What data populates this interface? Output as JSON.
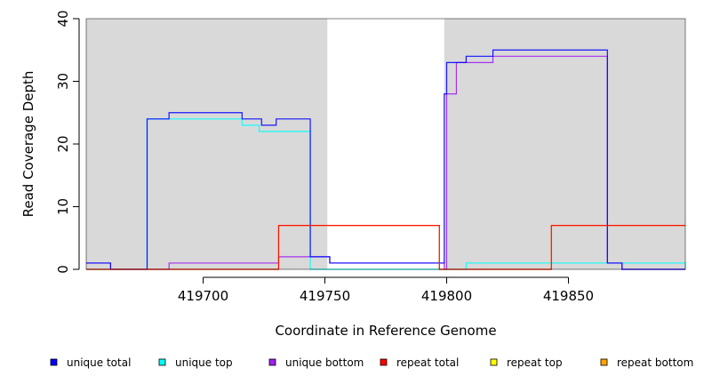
{
  "chart_data": {
    "type": "line",
    "title": "",
    "xlabel": "Coordinate in Reference Genome",
    "ylabel": "Read Coverage Depth",
    "xlim": [
      419652,
      419898
    ],
    "ylim": [
      0,
      40
    ],
    "x_ticks": [
      419700,
      419750,
      419800,
      419850
    ],
    "y_ticks": [
      0,
      10,
      20,
      30,
      40
    ],
    "grid": false,
    "step": true,
    "background": "#d9d9d9",
    "shaded_regions": [
      [
        419652,
        419751
      ],
      [
        419799,
        419898
      ]
    ],
    "legend_position": "bottom",
    "legend": [
      {
        "name": "unique total",
        "color": "#0000ff"
      },
      {
        "name": "unique top",
        "color": "#00ffff"
      },
      {
        "name": "unique bottom",
        "color": "#a020f0"
      },
      {
        "name": "repeat total",
        "color": "#ff0000"
      },
      {
        "name": "repeat top",
        "color": "#ffff00"
      },
      {
        "name": "repeat bottom",
        "color": "#ffa500"
      }
    ],
    "series": [
      {
        "name": "unique top",
        "color": "#00ffff",
        "x": [
          419652,
          419677,
          419686,
          419716,
          419723,
          419744,
          419752,
          419797,
          419799,
          419808,
          419819,
          419866,
          419898
        ],
        "y": [
          0,
          24,
          24,
          23,
          22,
          0,
          0,
          0,
          0,
          1,
          1,
          1,
          0
        ]
      },
      {
        "name": "unique bottom",
        "color": "#a020f0",
        "x": [
          419652,
          419662,
          419677,
          419686,
          419716,
          419723,
          419731,
          419744,
          419752,
          419797,
          419799,
          419800,
          419804,
          419819,
          419866,
          419872,
          419898
        ],
        "y": [
          1,
          0,
          0,
          1,
          1,
          1,
          2,
          2,
          1,
          1,
          0,
          28,
          33,
          34,
          1,
          0,
          0
        ]
      },
      {
        "name": "unique total",
        "color": "#0000ff",
        "x": [
          419652,
          419662,
          419677,
          419686,
          419716,
          419724,
          419730,
          419744,
          419752,
          419797,
          419799,
          419800,
          419804,
          419808,
          419819,
          419866,
          419872,
          419898
        ],
        "y": [
          1,
          0,
          24,
          25,
          24,
          23,
          24,
          2,
          1,
          1,
          28,
          33,
          33,
          34,
          35,
          1,
          0,
          0
        ]
      },
      {
        "name": "repeat bottom",
        "color": "#ffa500",
        "x": [
          419652,
          419731,
          419797,
          419843,
          419898
        ],
        "y": [
          0,
          7,
          0,
          7,
          7
        ]
      },
      {
        "name": "repeat total",
        "color": "#ff0000",
        "x": [
          419652,
          419731,
          419797,
          419843,
          419898
        ],
        "y": [
          0,
          7,
          0,
          7,
          7
        ]
      }
    ]
  }
}
